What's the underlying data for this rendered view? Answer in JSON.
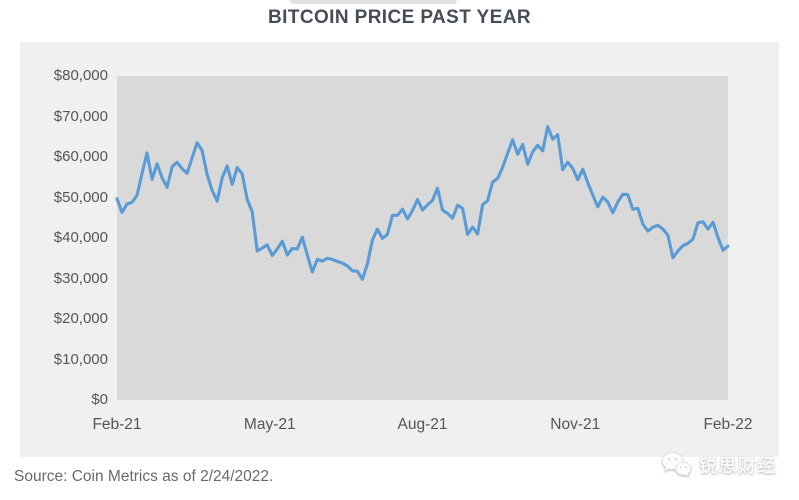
{
  "footer": {
    "source": "Source: Coin Metrics as of 2/24/2022.",
    "watermark_text": "锐思财经"
  },
  "chart_data": {
    "type": "line",
    "title": "BITCOIN PRICE PAST YEAR",
    "xlabel": "",
    "ylabel": "",
    "x_tick_labels": [
      "Feb-21",
      "May-21",
      "Aug-21",
      "Nov-21",
      "Feb-22"
    ],
    "y_tick_labels": [
      "$80,000",
      "$70,000",
      "$60,000",
      "$50,000",
      "$40,000",
      "$30,000",
      "$20,000",
      "$10,000",
      "$0"
    ],
    "ylim": [
      0,
      80000
    ],
    "x_range": [
      "Feb-21",
      "Feb-22"
    ],
    "grid": false,
    "legend_position": "none",
    "line_color": "#5b9bd5",
    "plot_bg_color": "#d9d9d9",
    "panel_bg_color": "#f0f0f0",
    "series": [
      {
        "name": "Bitcoin price (USD)",
        "values": [
          49700,
          46300,
          48400,
          48800,
          50500,
          55900,
          61000,
          54500,
          58300,
          54900,
          52500,
          57600,
          58700,
          57100,
          56000,
          59800,
          63500,
          61600,
          55700,
          51700,
          49100,
          54900,
          57800,
          53200,
          57400,
          55800,
          49500,
          46500,
          36800,
          37500,
          38300,
          35700,
          37300,
          39200,
          35800,
          37400,
          37300,
          40200,
          35800,
          31600,
          34700,
          34300,
          35000,
          34700,
          34200,
          33800,
          33100,
          31900,
          31800,
          29800,
          33600,
          39500,
          42200,
          39900,
          40900,
          45600,
          45600,
          47100,
          44700,
          46800,
          49500,
          46900,
          48200,
          49300,
          52300,
          46900,
          46100,
          44900,
          48100,
          47300,
          40900,
          42700,
          41000,
          48200,
          49200,
          53800,
          54700,
          57400,
          60900,
          64300,
          60700,
          63100,
          58200,
          61300,
          62900,
          61500,
          67500,
          64400,
          65500,
          56900,
          58700,
          57200,
          54400,
          57000,
          53600,
          50600,
          47700,
          50100,
          48900,
          46200,
          48900,
          50800,
          50700,
          47100,
          47300,
          43400,
          41700,
          42700,
          43100,
          42200,
          40700,
          35100,
          36800,
          38100,
          38700,
          39700,
          43800,
          44000,
          42200,
          43900,
          40100,
          37000,
          38000
        ]
      }
    ]
  }
}
